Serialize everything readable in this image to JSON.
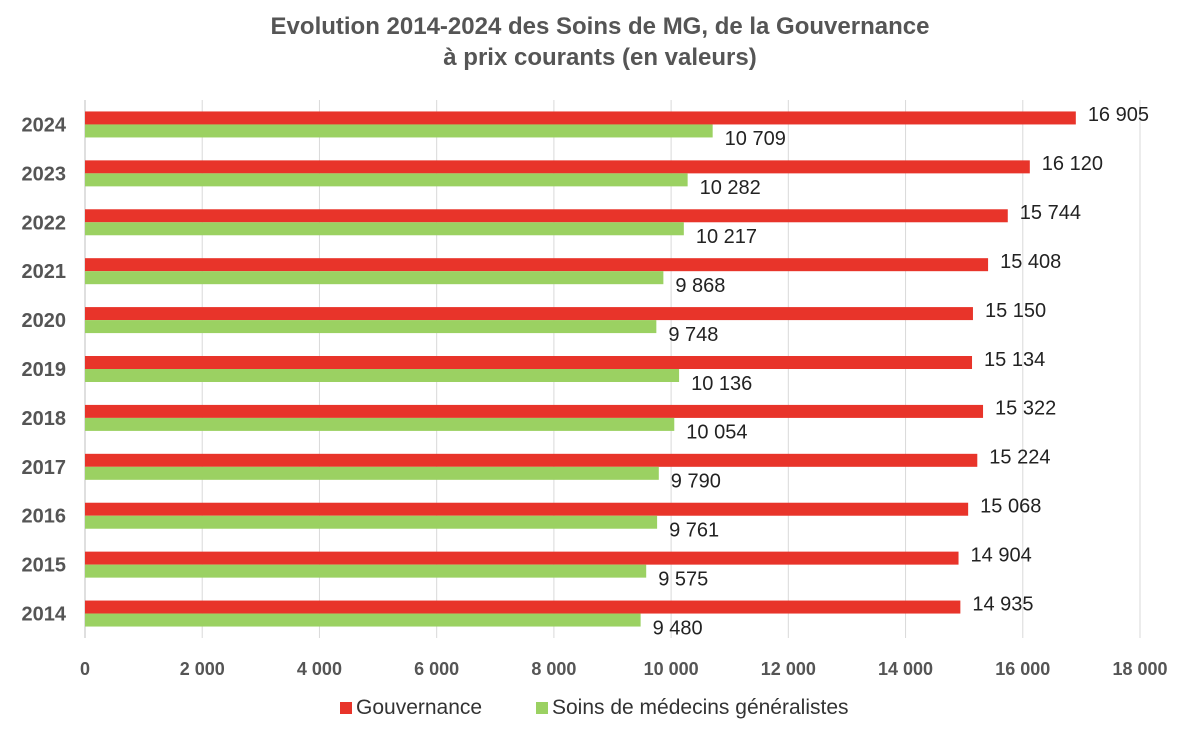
{
  "chart_data": {
    "type": "bar",
    "orientation": "horizontal",
    "title_line1": "Evolution 2014-2024 des Soins de MG, de la Gouvernance",
    "title_line2": "à prix courants (en valeurs)",
    "categories": [
      "2024",
      "2023",
      "2022",
      "2021",
      "2020",
      "2019",
      "2018",
      "2017",
      "2016",
      "2015",
      "2014"
    ],
    "series": [
      {
        "name": "Gouvernance",
        "color": "#e8342a",
        "values": [
          16905,
          16120,
          15744,
          15408,
          15150,
          15134,
          15322,
          15224,
          15068,
          14904,
          14935
        ],
        "labels": [
          "16 905",
          "16 120",
          "15 744",
          "15 408",
          "15 150",
          "15 134",
          "15 322",
          "15 224",
          "15 068",
          "14 904",
          "14 935"
        ]
      },
      {
        "name": "Soins de médecins généralistes",
        "color": "#9bd162",
        "values": [
          10709,
          10282,
          10217,
          9868,
          9748,
          10136,
          10054,
          9790,
          9761,
          9575,
          9480
        ],
        "labels": [
          "10 709",
          "10 282",
          "10 217",
          "9 868",
          "9 748",
          "10 136",
          "10 054",
          "9 790",
          "9 761",
          "9 575",
          "9 480"
        ]
      }
    ],
    "xlim": [
      0,
      18000
    ],
    "xticks": [
      0,
      2000,
      4000,
      6000,
      8000,
      10000,
      12000,
      14000,
      16000,
      18000
    ],
    "xtick_labels": [
      "0",
      "2 000",
      "4 000",
      "6 000",
      "8 000",
      "10 000",
      "12 000",
      "14 000",
      "16 000",
      "18 000"
    ],
    "legend_position": "bottom",
    "grid": true
  }
}
